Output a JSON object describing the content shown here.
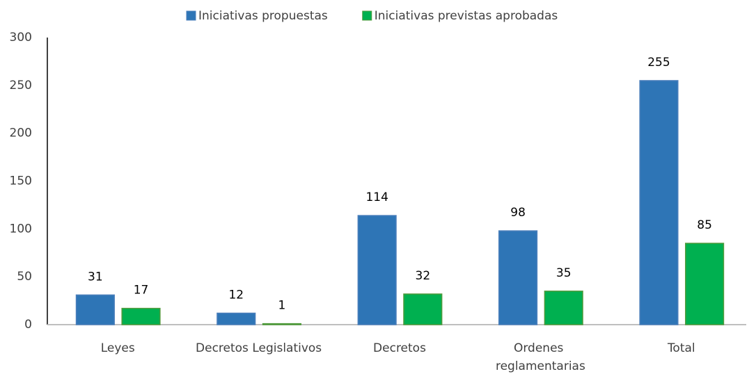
{
  "chart_data": {
    "type": "bar",
    "categories": [
      "Leyes",
      "Decretos Legislativos",
      "Decretos",
      "Ordenes reglamentarias",
      "Total"
    ],
    "series": [
      {
        "name": "Iniciativas propuestas",
        "color": "#2e75b6",
        "values": [
          31,
          12,
          114,
          98,
          255
        ]
      },
      {
        "name": "Iniciativas previstas aprobadas",
        "color": "#00b050",
        "values": [
          17,
          1,
          32,
          35,
          85
        ]
      }
    ],
    "ylim": [
      0,
      300
    ],
    "yticks": [
      0,
      50,
      100,
      150,
      200,
      250,
      300
    ],
    "grid": false,
    "legend": "top"
  }
}
